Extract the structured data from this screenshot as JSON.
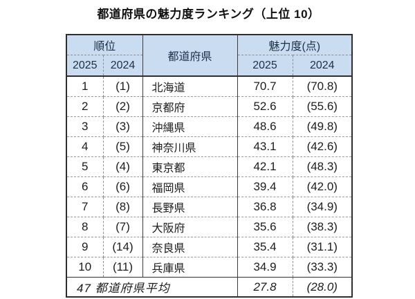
{
  "title": "都道府県の魅力度ランキング（上位 10）",
  "colors": {
    "header_bg": "#c9dcf0",
    "header_text": "#1c2f4a",
    "outer_border": "#2e2e2e",
    "dashed_border": "#8f8f8f",
    "body_text": "#1c1c1c",
    "background": "#ffffff"
  },
  "table": {
    "headers": {
      "rank_group": "順位",
      "prefecture": "都道府県",
      "score_group": "魅力度(点)",
      "rank_2025": "2025",
      "rank_2024": "2024",
      "score_2025": "2025",
      "score_2024": "2024"
    },
    "rows": [
      {
        "rank_2025": "1",
        "rank_2024": "(1)",
        "prefecture": "北海道",
        "score_2025": "70.7",
        "score_2024": "(70.8)"
      },
      {
        "rank_2025": "2",
        "rank_2024": "(2)",
        "prefecture": "京都府",
        "score_2025": "52.6",
        "score_2024": "(55.6)"
      },
      {
        "rank_2025": "3",
        "rank_2024": "(3)",
        "prefecture": "沖縄県",
        "score_2025": "48.6",
        "score_2024": "(49.8)"
      },
      {
        "rank_2025": "4",
        "rank_2024": "(5)",
        "prefecture": "神奈川県",
        "score_2025": "43.1",
        "score_2024": "(42.6)"
      },
      {
        "rank_2025": "5",
        "rank_2024": "(4)",
        "prefecture": "東京都",
        "score_2025": "42.1",
        "score_2024": "(48.3)"
      },
      {
        "rank_2025": "6",
        "rank_2024": "(6)",
        "prefecture": "福岡県",
        "score_2025": "39.4",
        "score_2024": "(42.0)"
      },
      {
        "rank_2025": "7",
        "rank_2024": "(8)",
        "prefecture": "長野県",
        "score_2025": "36.8",
        "score_2024": "(34.9)"
      },
      {
        "rank_2025": "8",
        "rank_2024": "(7)",
        "prefecture": "大阪府",
        "score_2025": "35.6",
        "score_2024": "(38.3)"
      },
      {
        "rank_2025": "9",
        "rank_2024": "(14)",
        "prefecture": "奈良県",
        "score_2025": "35.4",
        "score_2024": "(31.1)"
      },
      {
        "rank_2025": "10",
        "rank_2024": "(11)",
        "prefecture": "兵庫県",
        "score_2025": "34.9",
        "score_2024": "(33.3)"
      }
    ],
    "footer": {
      "label": "47 都道府県平均",
      "score_2025": "27.8",
      "score_2024": "(28.0)"
    }
  },
  "chart_data": {
    "type": "table",
    "title": "都道府県の魅力度ランキング（上位 10）",
    "columns": [
      "順位 2025",
      "順位 2024",
      "都道府県",
      "魅力度(点) 2025",
      "魅力度(点) 2024"
    ],
    "rows": [
      [
        "1",
        "(1)",
        "北海道",
        "70.7",
        "(70.8)"
      ],
      [
        "2",
        "(2)",
        "京都府",
        "52.6",
        "(55.6)"
      ],
      [
        "3",
        "(3)",
        "沖縄県",
        "48.6",
        "(49.8)"
      ],
      [
        "4",
        "(5)",
        "神奈川県",
        "43.1",
        "(42.6)"
      ],
      [
        "5",
        "(4)",
        "東京都",
        "42.1",
        "(48.3)"
      ],
      [
        "6",
        "(6)",
        "福岡県",
        "39.4",
        "(42.0)"
      ],
      [
        "7",
        "(8)",
        "長野県",
        "36.8",
        "(34.9)"
      ],
      [
        "8",
        "(7)",
        "大阪府",
        "35.6",
        "(38.3)"
      ],
      [
        "9",
        "(14)",
        "奈良県",
        "35.4",
        "(31.1)"
      ],
      [
        "10",
        "(11)",
        "兵庫県",
        "34.9",
        "(33.3)"
      ]
    ],
    "footer_row": [
      "47 都道府県平均",
      "27.8",
      "(28.0)"
    ],
    "notes": "2024 values shown in parentheses; scores in points (点)"
  }
}
